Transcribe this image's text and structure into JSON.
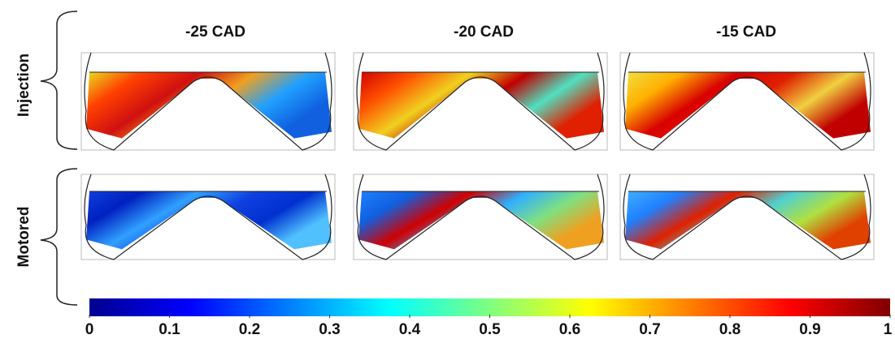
{
  "columns": [
    "-25 CAD",
    "-20 CAD",
    "-15 CAD"
  ],
  "rows": [
    "Injection",
    "Motored"
  ],
  "colorbar": {
    "lim": [
      0,
      1
    ],
    "ticks": [
      0,
      0.1,
      0.2,
      0.3,
      0.4,
      0.5,
      0.6,
      0.7,
      0.8,
      0.9,
      1
    ]
  }
}
